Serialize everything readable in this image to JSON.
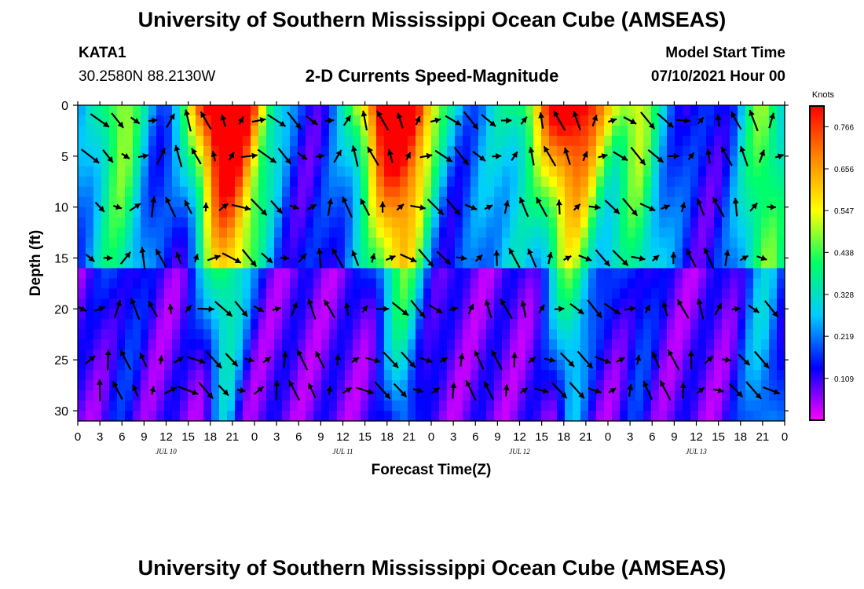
{
  "header": {
    "title": "University of Southern Mississippi Ocean Cube (AMSEAS)",
    "station_id": "KATA1",
    "station_coords": "30.2580N  88.2130W",
    "chart_title": "2-D Currents Speed-Magnitude",
    "start_label": "Model Start Time",
    "start_value": "07/10/2021 Hour 00"
  },
  "footer": {
    "title": "University of Southern Mississippi Ocean Cube (AMSEAS)"
  },
  "chart_data": {
    "type": "heatmap",
    "title": "2-D Currents Speed-Magnitude",
    "xlabel": "Forecast Time(Z)",
    "ylabel": "Depth (ft)",
    "x_range": [
      0,
      96
    ],
    "y_range": [
      0,
      31
    ],
    "y_inverted": true,
    "x_unit": "hours since 07/10/2021 00Z",
    "x_tick_labels": [
      "0",
      "3",
      "6",
      "9",
      "12",
      "15",
      "18",
      "21",
      "0",
      "3",
      "6",
      "9",
      "12",
      "15",
      "18",
      "21",
      "0",
      "3",
      "6",
      "9",
      "12",
      "15",
      "18",
      "21",
      "0",
      "3",
      "6",
      "9",
      "12",
      "15",
      "18",
      "21",
      "0"
    ],
    "day_labels": [
      {
        "label": "JUL 10",
        "at_hour": 12
      },
      {
        "label": "JUL 11",
        "at_hour": 36
      },
      {
        "label": "JUL 12",
        "at_hour": 60
      },
      {
        "label": "JUL 13",
        "at_hour": 84
      }
    ],
    "y_ticks": [
      0,
      5,
      10,
      15,
      20,
      25,
      30
    ],
    "colorbar": {
      "unit": "Knots",
      "range": [
        0,
        0.82
      ],
      "tick_labels": [
        "0.766",
        "0.656",
        "0.547",
        "0.438",
        "0.328",
        "0.219",
        "0.109"
      ],
      "tick_values": [
        0.766,
        0.656,
        0.547,
        0.438,
        0.328,
        0.219,
        0.109
      ],
      "colors": [
        "#ff00ff",
        "#0000ff",
        "#00ccff",
        "#00ff66",
        "#ffff00",
        "#ff8800",
        "#ff0000"
      ]
    },
    "speed_peaks_hours": [
      20,
      44,
      67
    ],
    "arrow_depths_ft": [
      1.5,
      5,
      10,
      15,
      20,
      25,
      28
    ],
    "arrow_interval_hours": 2.4
  }
}
